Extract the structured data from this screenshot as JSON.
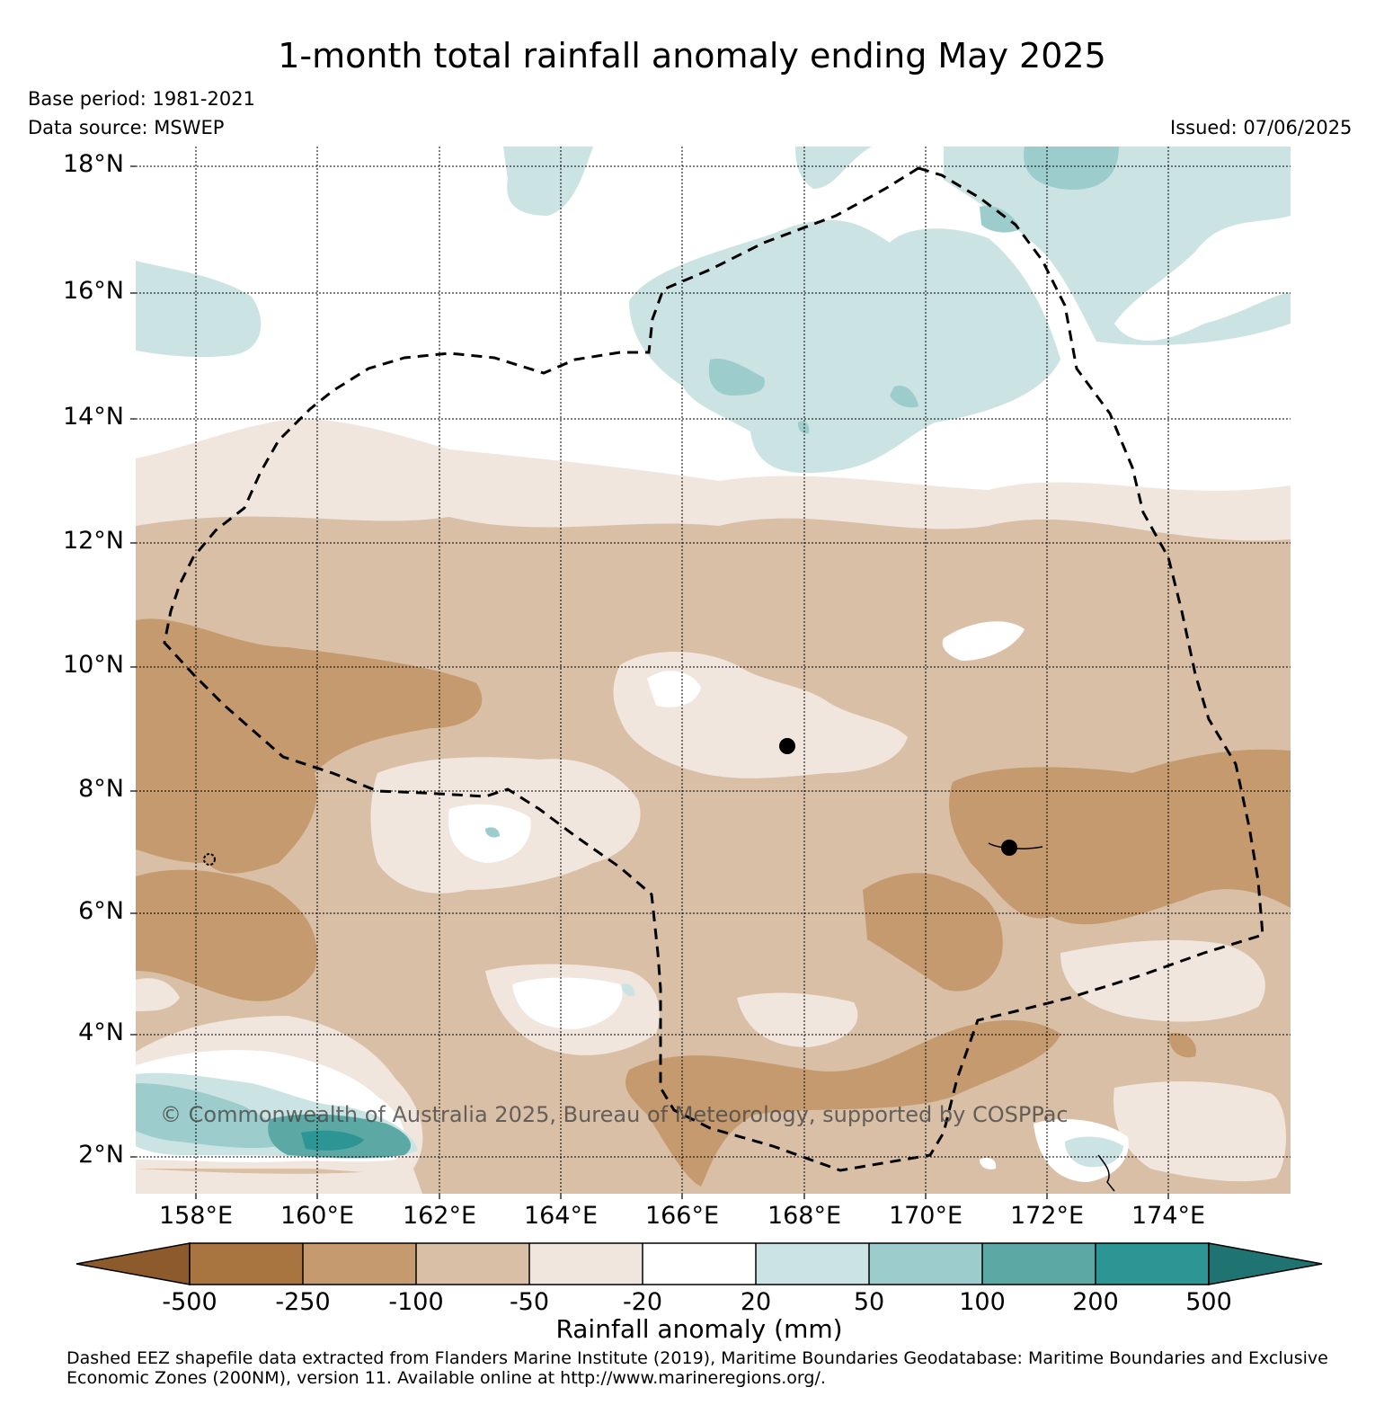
{
  "title": "1-month total rainfall anomaly ending May 2025",
  "base_period": "Base period: 1981-2021",
  "data_source": "Data source: MSWEP",
  "issued": "Issued: 07/06/2025",
  "copyright": "© Commonwealth of Australia 2025, Bureau of Meteorology, supported by COSPPac",
  "latitude_labels": [
    "18°N",
    "16°N",
    "14°N",
    "12°N",
    "10°N",
    "8°N",
    "6°N",
    "4°N",
    "2°N"
  ],
  "longitude_labels": [
    "158°E",
    "160°E",
    "162°E",
    "164°E",
    "166°E",
    "168°E",
    "170°E",
    "172°E",
    "174°E"
  ],
  "colorbar": {
    "title": "Rainfall anomaly (mm)",
    "ticks": [
      "-500",
      "-250",
      "-100",
      "-50",
      "-20",
      "20",
      "50",
      "100",
      "200",
      "500"
    ],
    "colors": [
      "#8c5a2b",
      "#a8743f",
      "#c49a6e",
      "#d9bfa6",
      "#f0e6dd",
      "#ffffff",
      "#cbe4e3",
      "#9ccccc",
      "#5ca8a5",
      "#2d9593",
      "#1f7472"
    ]
  },
  "footer": "Dashed EEZ shapefile data extracted from Flanders Marine Institute (2019), Maritime Boundaries Geodatabase: Maritime Boundaries and Exclusive Economic Zones (200NM), version 11. Available online at http://www.marineregions.org/."
}
